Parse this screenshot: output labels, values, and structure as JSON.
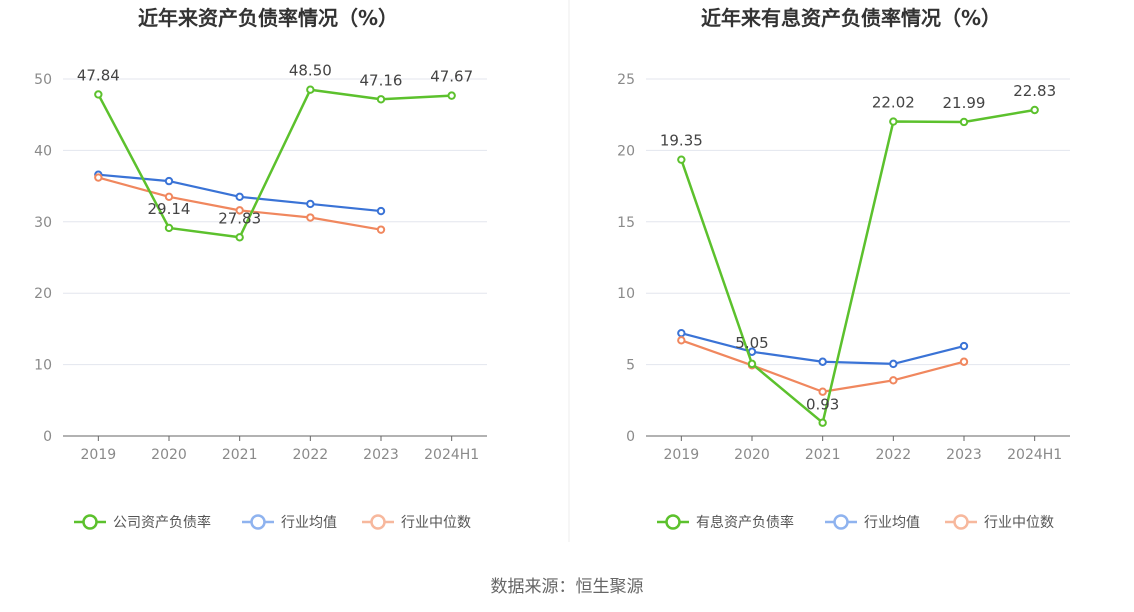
{
  "source_text": "数据来源：恒生聚源",
  "colors": {
    "company": "#5cc12d",
    "avg": "#3a73d6",
    "median": "#f0875e",
    "legend_avg": "#8fb3ef",
    "legend_median": "#f7b89d",
    "grid": "#e3e6ee",
    "axis": "#666666"
  },
  "chart_data": [
    {
      "type": "line",
      "title": "近年来资产负债率情况（%）",
      "categories": [
        "2019",
        "2020",
        "2021",
        "2022",
        "2023",
        "2024H1"
      ],
      "ylim": [
        0,
        50
      ],
      "yticks": [
        0,
        10,
        20,
        30,
        40,
        50
      ],
      "grid": true,
      "legend_position": "bottom",
      "series": [
        {
          "name": "公司资产负债率",
          "role": "company",
          "values": [
            47.84,
            29.14,
            27.83,
            48.5,
            47.16,
            47.67
          ],
          "labels": [
            "47.84",
            "29.14",
            "27.83",
            "48.50",
            "47.16",
            "47.67"
          ]
        },
        {
          "name": "行业均值",
          "role": "avg",
          "values": [
            36.6,
            35.7,
            33.5,
            32.5,
            31.5,
            null
          ]
        },
        {
          "name": "行业中位数",
          "role": "median",
          "values": [
            36.2,
            33.5,
            31.6,
            30.6,
            28.9,
            null
          ]
        }
      ]
    },
    {
      "type": "line",
      "title": "近年来有息资产负债率情况（%）",
      "categories": [
        "2019",
        "2020",
        "2021",
        "2022",
        "2023",
        "2024H1"
      ],
      "ylim": [
        0,
        25
      ],
      "yticks": [
        0,
        5,
        10,
        15,
        20,
        25
      ],
      "grid": true,
      "legend_position": "bottom",
      "series": [
        {
          "name": "有息资产负债率",
          "role": "company",
          "values": [
            19.35,
            5.05,
            0.93,
            22.02,
            21.99,
            22.83
          ],
          "labels": [
            "19.35",
            "5.05",
            "0.93",
            "22.02",
            "21.99",
            "22.83"
          ]
        },
        {
          "name": "行业均值",
          "role": "avg",
          "values": [
            7.2,
            5.9,
            5.2,
            5.05,
            6.3,
            null
          ]
        },
        {
          "name": "行业中位数",
          "role": "median",
          "values": [
            6.7,
            4.95,
            3.1,
            3.9,
            5.2,
            null
          ]
        }
      ]
    }
  ]
}
